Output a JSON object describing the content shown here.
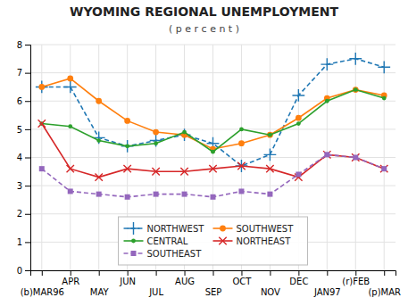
{
  "chart_data": {
    "type": "line",
    "title": "WYOMING REGIONAL UNEMPLOYMENT",
    "subtitle": "( p e r c e n t )",
    "categories": [
      "(b)MAR96",
      "APR",
      "MAY",
      "JUN",
      "JUL",
      "AUG",
      "SEP",
      "OCT",
      "NOV",
      "DEC",
      "JAN97",
      "(r)FEB",
      "(p)MAR"
    ],
    "series": [
      {
        "name": "NORTHWEST",
        "values": [
          6.5,
          6.5,
          4.7,
          4.4,
          4.6,
          4.8,
          4.5,
          3.7,
          4.1,
          6.2,
          7.3,
          7.5,
          7.2
        ],
        "marker": "plus",
        "line_style": "dashed"
      },
      {
        "name": "SOUTHWEST",
        "values": [
          6.5,
          6.8,
          6.0,
          5.3,
          4.9,
          4.8,
          4.3,
          4.5,
          4.8,
          5.4,
          6.1,
          6.4,
          6.2
        ],
        "marker": "circle",
        "line_style": "solid"
      },
      {
        "name": "CENTRAL",
        "values": [
          5.2,
          5.1,
          4.6,
          4.4,
          4.5,
          4.9,
          4.2,
          5.0,
          4.8,
          5.2,
          6.0,
          6.4,
          6.1
        ],
        "marker": "point",
        "line_style": "solid"
      },
      {
        "name": "NORTHEAST",
        "values": [
          5.2,
          3.6,
          3.3,
          3.6,
          3.5,
          3.5,
          3.6,
          3.7,
          3.6,
          3.3,
          4.1,
          4.0,
          3.6
        ],
        "marker": "x",
        "line_style": "solid"
      },
      {
        "name": "SOUTHEAST",
        "values": [
          3.6,
          2.8,
          2.7,
          2.6,
          2.7,
          2.7,
          2.6,
          2.8,
          2.7,
          3.4,
          4.1,
          4.0,
          3.6
        ],
        "marker": "square",
        "line_style": "dashed"
      }
    ],
    "ylim": [
      0,
      8
    ],
    "yticks": [
      0,
      1,
      2,
      3,
      4,
      5,
      6,
      7,
      8
    ],
    "grid": true,
    "legend": "bottom"
  }
}
